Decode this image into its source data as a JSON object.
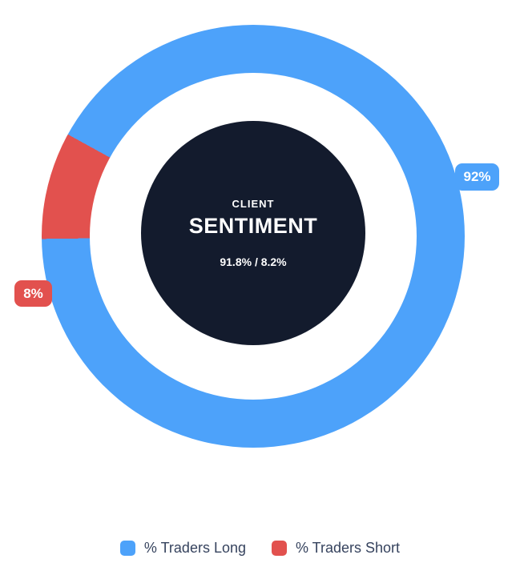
{
  "chart_data": {
    "type": "pie",
    "subtype": "doughnut",
    "labels": [
      "% Traders Long",
      "% Traders Short"
    ],
    "values": [
      91.8,
      8.2
    ],
    "displayed_slice_labels": [
      "92%",
      "8%"
    ],
    "colors": [
      "#4da2fa",
      "#e2514e"
    ],
    "rotation_deg_clockwise_from_top": 298.8,
    "legend_position": "bottom",
    "center_text": {
      "kicker": "CLIENT",
      "title": "SENTIMENT",
      "ratio": "91.8% / 8.2%"
    },
    "hole_background": "#ffffff",
    "center_disc_color": "#131b2d"
  },
  "center": {
    "kicker": "CLIENT",
    "title": "SENTIMENT",
    "ratio": "91.8% / 8.2%",
    "background": "#131b2d"
  },
  "badges": {
    "long": {
      "label": "92%",
      "color": "#4da2fa"
    },
    "short": {
      "label": "8%",
      "color": "#e2514e"
    }
  },
  "legend": {
    "items": [
      {
        "label": "% Traders Long",
        "color": "#4da2fa"
      },
      {
        "label": "% Traders Short",
        "color": "#e2514e"
      }
    ]
  }
}
